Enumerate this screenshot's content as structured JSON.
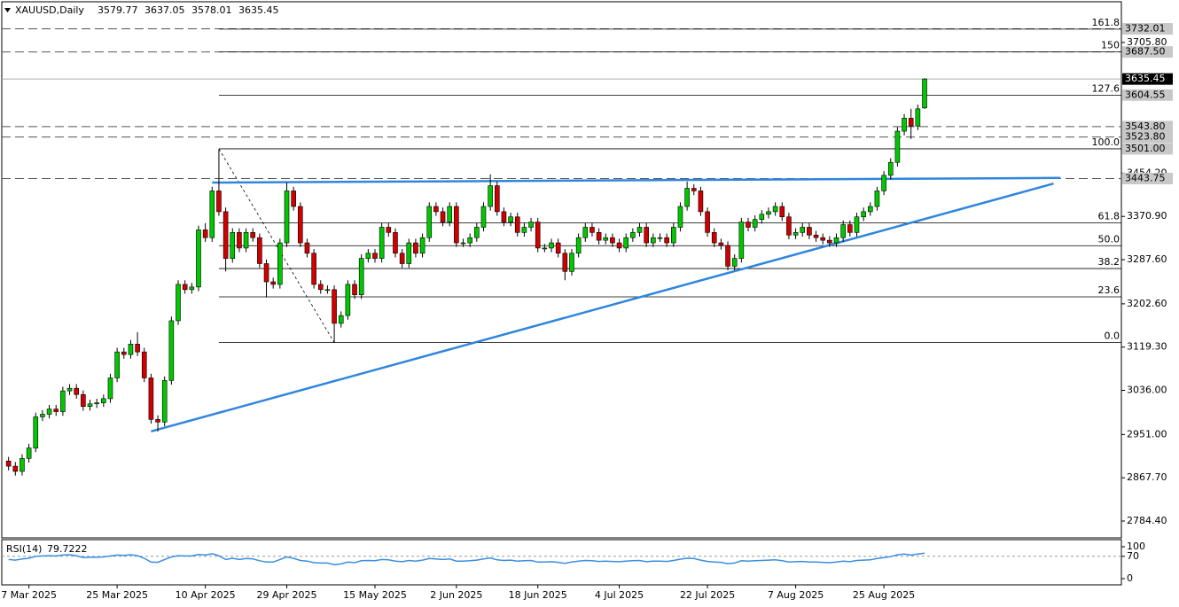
{
  "chart_data": [
    {
      "type": "candlestick",
      "title": "XAUUSD,Daily",
      "bull_color": "#00c800",
      "bear_color": "#d00000",
      "xlim": [
        -1,
        164
      ],
      "xticks": [
        {
          "value": 3,
          "label": "7 Mar 2025"
        },
        {
          "value": 16,
          "label": "25 Mar 2025"
        },
        {
          "value": 29,
          "label": "10 Apr 2025"
        },
        {
          "value": 41,
          "label": "29 Apr 2025"
        },
        {
          "value": 54,
          "label": "15 May 2025"
        },
        {
          "value": 66,
          "label": "2 Jun 2025"
        },
        {
          "value": 78,
          "label": "18 Jun 2025"
        },
        {
          "value": 90,
          "label": "4 Jul 2025"
        },
        {
          "value": 103,
          "label": "22 Jul 2025"
        },
        {
          "value": 116,
          "label": "7 Aug 2025"
        },
        {
          "value": 129,
          "label": "25 Aug 2025"
        }
      ],
      "ylim": [
        2752,
        3779
      ],
      "yticks": [
        {
          "value": 2784.4,
          "label": "2784.40"
        },
        {
          "value": 2867.7,
          "label": "2867.70"
        },
        {
          "value": 2951,
          "label": "2951.00"
        },
        {
          "value": 3036,
          "label": "3036.00"
        },
        {
          "value": 3119.3,
          "label": "3119.30"
        },
        {
          "value": 3202.6,
          "label": "3202.60"
        },
        {
          "value": 3287.6,
          "label": "3287.60"
        },
        {
          "value": 3370.9,
          "label": "3370.90"
        },
        {
          "value": 3454.2,
          "label": "3454.20"
        },
        {
          "value": 3705.8,
          "label": "3705.80"
        }
      ],
      "open": [
        2900,
        2890,
        2880,
        2905,
        2925,
        2985,
        2990,
        3000,
        2995,
        3035,
        3040,
        3028,
        3005,
        3010,
        3012,
        3020,
        3060,
        3110,
        3105,
        3125,
        3110,
        3060,
        2980,
        2975,
        3055,
        3170,
        3240,
        3230,
        3235,
        3345,
        3330,
        3420,
        3380,
        3290,
        3340,
        3310,
        3340,
        3330,
        3280,
        3245,
        3240,
        3320,
        3420,
        3390,
        3320,
        3300,
        3240,
        3230,
        3230,
        3165,
        3180,
        3240,
        3220,
        3290,
        3300,
        3290,
        3350,
        3340,
        3300,
        3280,
        3320,
        3300,
        3330,
        3390,
        3380,
        3360,
        3390,
        3320,
        3320,
        3330,
        3350,
        3390,
        3430,
        3380,
        3360,
        3370,
        3340,
        3350,
        3360,
        3310,
        3310,
        3320,
        3300,
        3265,
        3300,
        3330,
        3350,
        3340,
        3325,
        3330,
        3320,
        3310,
        3330,
        3340,
        3350,
        3320,
        3330,
        3330,
        3320,
        3350,
        3390,
        3425,
        3420,
        3380,
        3340,
        3320,
        3315,
        3275,
        3290,
        3360,
        3350,
        3365,
        3375,
        3380,
        3390,
        3370,
        3335,
        3340,
        3350,
        3335,
        3330,
        3325,
        3320,
        3330,
        3355,
        3340,
        3370,
        3380,
        3390,
        3420,
        3450,
        3475,
        3535,
        3560,
        3545,
        3579.77
      ],
      "high": [
        2908,
        2898,
        2913,
        2933,
        2993,
        2998,
        3008,
        3008,
        3043,
        3048,
        3048,
        3036,
        3018,
        3020,
        3028,
        3068,
        3118,
        3118,
        3133,
        3148,
        3118,
        3068,
        2988,
        3063,
        3178,
        3248,
        3248,
        3243,
        3353,
        3358,
        3428,
        3500,
        3388,
        3348,
        3348,
        3348,
        3348,
        3338,
        3288,
        3253,
        3328,
        3436,
        3428,
        3398,
        3328,
        3308,
        3248,
        3238,
        3238,
        3188,
        3248,
        3248,
        3298,
        3308,
        3308,
        3358,
        3358,
        3348,
        3308,
        3328,
        3328,
        3338,
        3398,
        3398,
        3388,
        3398,
        3398,
        3328,
        3338,
        3358,
        3398,
        3452,
        3438,
        3388,
        3378,
        3378,
        3358,
        3368,
        3368,
        3318,
        3328,
        3328,
        3308,
        3308,
        3338,
        3358,
        3358,
        3348,
        3338,
        3338,
        3328,
        3338,
        3348,
        3358,
        3358,
        3338,
        3338,
        3338,
        3358,
        3398,
        3438,
        3433,
        3428,
        3388,
        3348,
        3328,
        3323,
        3298,
        3368,
        3368,
        3373,
        3383,
        3388,
        3398,
        3398,
        3378,
        3348,
        3358,
        3358,
        3343,
        3338,
        3333,
        3338,
        3363,
        3363,
        3378,
        3388,
        3398,
        3428,
        3458,
        3483,
        3543,
        3568,
        3578,
        3586,
        3637.05
      ],
      "low": [
        2882,
        2872,
        2872,
        2897,
        2917,
        2977,
        2982,
        2987,
        2987,
        3027,
        3020,
        2997,
        2997,
        3002,
        3004,
        3012,
        3052,
        3097,
        3097,
        3102,
        3052,
        2972,
        2957,
        2967,
        3047,
        3162,
        3222,
        3222,
        3227,
        3322,
        3322,
        3372,
        3265,
        3282,
        3302,
        3302,
        3322,
        3272,
        3215,
        3232,
        3232,
        3312,
        3382,
        3312,
        3292,
        3232,
        3222,
        3222,
        3128,
        3157,
        3172,
        3212,
        3212,
        3282,
        3282,
        3282,
        3332,
        3292,
        3272,
        3272,
        3292,
        3292,
        3322,
        3372,
        3352,
        3352,
        3312,
        3312,
        3312,
        3322,
        3342,
        3382,
        3372,
        3352,
        3352,
        3332,
        3332,
        3342,
        3302,
        3302,
        3302,
        3292,
        3248,
        3257,
        3292,
        3322,
        3332,
        3317,
        3317,
        3312,
        3302,
        3302,
        3322,
        3332,
        3312,
        3312,
        3322,
        3312,
        3312,
        3342,
        3382,
        3412,
        3372,
        3332,
        3312,
        3307,
        3267,
        3267,
        3282,
        3342,
        3342,
        3357,
        3367,
        3372,
        3362,
        3327,
        3327,
        3332,
        3327,
        3322,
        3317,
        3312,
        3312,
        3322,
        3332,
        3332,
        3362,
        3372,
        3382,
        3412,
        3442,
        3467,
        3527,
        3520,
        3537,
        3578.01
      ],
      "close": [
        2890,
        2880,
        2905,
        2925,
        2985,
        2990,
        3000,
        2995,
        3035,
        3040,
        3028,
        3005,
        3010,
        3012,
        3020,
        3060,
        3110,
        3105,
        3125,
        3110,
        3060,
        2980,
        2975,
        3055,
        3170,
        3240,
        3230,
        3235,
        3345,
        3330,
        3420,
        3380,
        3290,
        3340,
        3310,
        3340,
        3330,
        3280,
        3245,
        3240,
        3320,
        3420,
        3390,
        3320,
        3300,
        3240,
        3230,
        3230,
        3165,
        3180,
        3240,
        3220,
        3290,
        3300,
        3290,
        3350,
        3340,
        3300,
        3280,
        3320,
        3300,
        3330,
        3390,
        3380,
        3360,
        3390,
        3320,
        3320,
        3330,
        3350,
        3390,
        3430,
        3380,
        3360,
        3370,
        3340,
        3350,
        3360,
        3310,
        3310,
        3320,
        3300,
        3265,
        3300,
        3330,
        3350,
        3340,
        3325,
        3330,
        3320,
        3310,
        3330,
        3340,
        3350,
        3320,
        3330,
        3330,
        3320,
        3350,
        3390,
        3425,
        3420,
        3380,
        3340,
        3320,
        3315,
        3275,
        3290,
        3360,
        3350,
        3365,
        3375,
        3380,
        3390,
        3370,
        3335,
        3340,
        3350,
        3335,
        3330,
        3325,
        3320,
        3330,
        3355,
        3340,
        3370,
        3380,
        3390,
        3420,
        3450,
        3475,
        3535,
        3560,
        3545,
        3578,
        3635.45
      ],
      "fib": {
        "from_index": 31,
        "to_index": 48,
        "levels": [
          {
            "value": 3731.5,
            "label": "161.8"
          },
          {
            "value": 3687.5,
            "label": "150"
          },
          {
            "value": 3603.9,
            "label": "127.6"
          },
          {
            "value": 3501,
            "label": "100.0"
          },
          {
            "value": 3358.5,
            "label": "61.8"
          },
          {
            "value": 3314.5,
            "label": "50.0"
          },
          {
            "value": 3270.5,
            "label": "38.2"
          },
          {
            "value": 3216,
            "label": "23.6"
          },
          {
            "value": 3128,
            "label": "0.0"
          }
        ]
      },
      "price_levels": [
        {
          "value": 3732.01,
          "label": "3732.01",
          "line": "dashed"
        },
        {
          "value": 3687.5,
          "label": "3687.50",
          "line": "dashed"
        },
        {
          "value": 3604.55,
          "label": "3604.55",
          "line": "none"
        },
        {
          "value": 3543.8,
          "label": "3543.80",
          "line": "dashed"
        },
        {
          "value": 3523.8,
          "label": "3523.80",
          "line": "dashed"
        },
        {
          "value": 3501,
          "label": "3501.00",
          "line": "none"
        },
        {
          "value": 3443.75,
          "label": "3443.75",
          "line": "dashed"
        }
      ],
      "trendlines": [
        {
          "start": [
            21,
            2957
          ],
          "end": [
            154,
            3434
          ],
          "color": "#2f86dc"
        },
        {
          "start": [
            30,
            3436
          ],
          "end": [
            155,
            3445
          ],
          "color": "#2f86dc"
        }
      ]
    },
    {
      "type": "line",
      "title": "RSI(14)",
      "color": "#3a8fe0",
      "ylim": [
        0,
        100
      ],
      "yticks": [
        0,
        70,
        100
      ],
      "level": 70,
      "values": [
        60,
        58,
        62,
        64,
        70,
        71,
        72,
        71,
        74,
        75,
        72,
        66,
        67,
        67,
        68,
        71,
        74,
        73,
        75,
        72,
        64,
        52,
        51,
        60,
        68,
        72,
        71,
        71,
        76,
        74,
        78,
        72,
        60,
        64,
        60,
        63,
        62,
        56,
        52,
        52,
        60,
        68,
        64,
        57,
        55,
        50,
        49,
        49,
        44,
        46,
        52,
        50,
        56,
        57,
        56,
        60,
        59,
        55,
        53,
        57,
        55,
        58,
        63,
        62,
        60,
        62,
        55,
        55,
        56,
        58,
        62,
        65,
        59,
        57,
        58,
        55,
        56,
        57,
        52,
        52,
        53,
        51,
        48,
        52,
        55,
        57,
        56,
        54,
        55,
        54,
        53,
        55,
        56,
        57,
        53,
        55,
        55,
        54,
        57,
        61,
        64,
        63,
        58,
        54,
        52,
        51,
        47,
        49,
        56,
        55,
        56,
        57,
        58,
        59,
        56,
        52,
        53,
        54,
        52,
        52,
        51,
        50,
        52,
        55,
        53,
        57,
        58,
        59,
        63,
        66,
        69,
        75,
        77,
        74,
        77,
        79.7222
      ]
    }
  ]
}
